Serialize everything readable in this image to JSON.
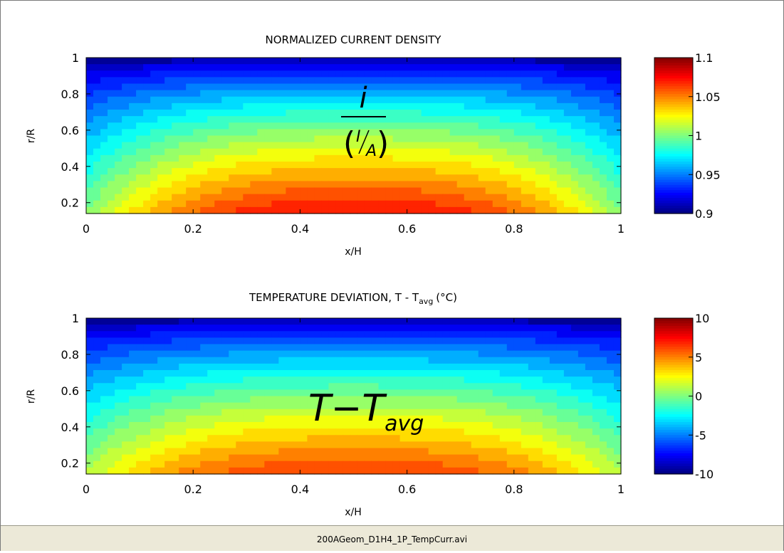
{
  "chart_data": [
    {
      "type": "heatmap",
      "title": "NORMALIZED CURRENT DENSITY",
      "xlabel": "x/H",
      "ylabel": "r/R",
      "xlim": [
        0,
        1
      ],
      "ylim": [
        0.14,
        1
      ],
      "x_ticks": [
        "0",
        "0.2",
        "0.4",
        "0.6",
        "0.8",
        "1"
      ],
      "y_ticks": [
        "0.2",
        "0.4",
        "0.6",
        "0.8",
        "1"
      ],
      "colorbar": {
        "min": 0.9,
        "max": 1.1,
        "ticks": [
          "1.1",
          "1.05",
          "1",
          "0.95",
          "0.9"
        ]
      },
      "field": {
        "center_x": 0.5,
        "peak_value": 1.075,
        "value_at_r1": 0.9,
        "edge_value_at_bottom": 1.0,
        "shape": "maximum near x/H=0.5 at lowest r/R, decreasing toward r/R=1 and toward x/H=0 and 1"
      },
      "annotation_parts": {
        "numerator": "i",
        "denominator_num": "I",
        "denominator_den": "A"
      },
      "colormap": "jet"
    },
    {
      "type": "heatmap",
      "title_main": "TEMPERATURE DEVIATION, T - T",
      "title_sub": "avg",
      "title_unit": "(°C)",
      "xlabel": "x/H",
      "ylabel": "r/R",
      "xlim": [
        0,
        1
      ],
      "ylim": [
        0.14,
        1
      ],
      "x_ticks": [
        "0",
        "0.2",
        "0.4",
        "0.6",
        "0.8",
        "1"
      ],
      "y_ticks": [
        "0.2",
        "0.4",
        "0.6",
        "0.8",
        "1"
      ],
      "colorbar": {
        "min": -10,
        "max": 10,
        "ticks": [
          "10",
          "5",
          "0",
          "-5",
          "-10"
        ]
      },
      "field": {
        "center_x": 0.5,
        "peak_value": 6.5,
        "value_at_r1": -10,
        "edge_value_at_bottom": 1.0,
        "shape": "maximum near x/H=0.5 at lowest r/R, decreasing toward r/R=1 and toward x/H=0 and 1"
      },
      "annotation_main": "T−T",
      "annotation_sub": "avg",
      "colormap": "jet"
    }
  ],
  "statusbar": {
    "filename": "200AGeom_D1H4_1P_TempCurr.avi"
  }
}
